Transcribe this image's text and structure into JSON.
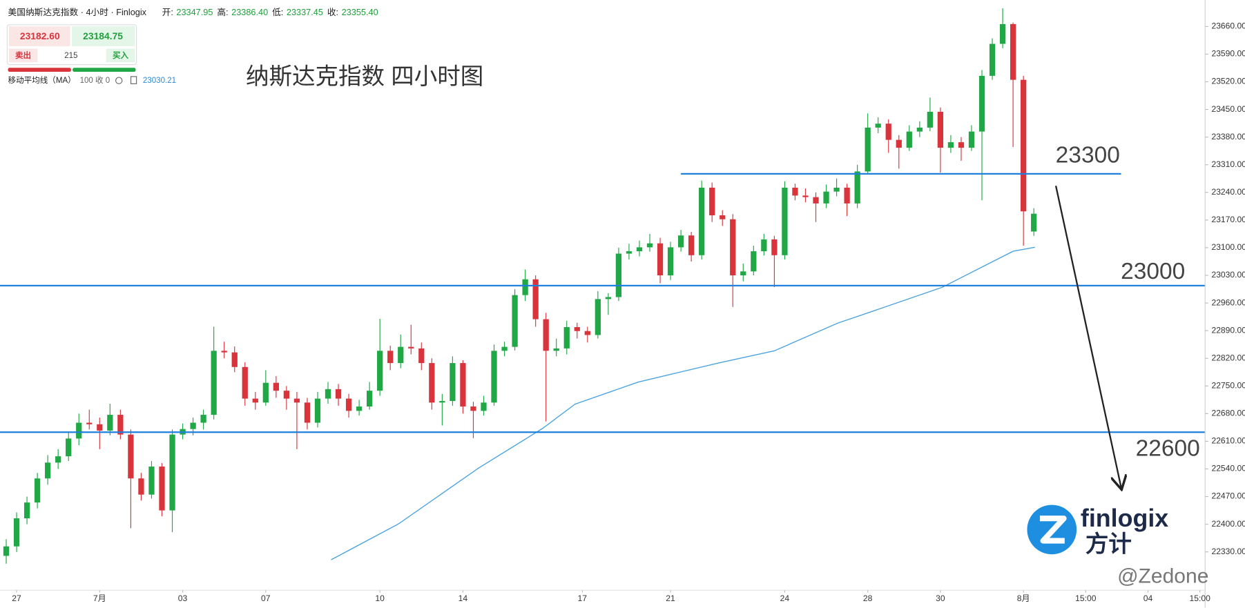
{
  "header": {
    "instrument": "美国纳斯达克指数 · 4小时 · Finlogix",
    "ohlc_labels": [
      "开:",
      "高:",
      "低:",
      "收:"
    ],
    "ohlc_values": [
      "23347.95",
      "23386.40",
      "23337.45",
      "23355.40"
    ]
  },
  "trade_panel": {
    "sell_price": "23182.60",
    "buy_price": "23184.75",
    "sell": "卖出",
    "spread": "215",
    "buy": "买入"
  },
  "indicator": {
    "name": "移动平均线（MA）",
    "params": "100 收 0",
    "value": "23030.21"
  },
  "logo": {
    "brand": "finlogix",
    "chinese": "方计"
  },
  "watermark": "@Zedone",
  "chart_data": {
    "type": "candlestick",
    "title": "纳斯达克指数 四小时图",
    "up_color": "#21a846",
    "down_color": "#d9343c",
    "ohlc": [
      [
        22320,
        22362,
        22300,
        22344
      ],
      [
        22344,
        22430,
        22330,
        22415
      ],
      [
        22415,
        22470,
        22400,
        22455
      ],
      [
        22455,
        22530,
        22440,
        22516
      ],
      [
        22516,
        22575,
        22500,
        22556
      ],
      [
        22556,
        22590,
        22540,
        22572
      ],
      [
        22572,
        22635,
        22560,
        22617
      ],
      [
        22617,
        22680,
        22600,
        22657
      ],
      [
        22657,
        22690,
        22640,
        22653
      ],
      [
        22653,
        22670,
        22590,
        22637
      ],
      [
        22637,
        22705,
        22625,
        22677
      ],
      [
        22677,
        22690,
        22615,
        22627
      ],
      [
        22627,
        22640,
        22390,
        22516
      ],
      [
        22516,
        22530,
        22460,
        22475
      ],
      [
        22475,
        22560,
        22465,
        22546
      ],
      [
        22546,
        22555,
        22420,
        22435
      ],
      [
        22435,
        22640,
        22380,
        22627
      ],
      [
        22627,
        22655,
        22615,
        22641
      ],
      [
        22641,
        22670,
        22625,
        22657
      ],
      [
        22657,
        22690,
        22640,
        22677
      ],
      [
        22677,
        22900,
        22665,
        22839
      ],
      [
        22839,
        22862,
        22820,
        22835
      ],
      [
        22835,
        22850,
        22785,
        22798
      ],
      [
        22798,
        22810,
        22700,
        22718
      ],
      [
        22718,
        22735,
        22690,
        22708
      ],
      [
        22708,
        22790,
        22700,
        22758
      ],
      [
        22758,
        22775,
        22720,
        22738
      ],
      [
        22738,
        22750,
        22690,
        22718
      ],
      [
        22718,
        22735,
        22590,
        22708
      ],
      [
        22708,
        22720,
        22640,
        22657
      ],
      [
        22657,
        22735,
        22645,
        22718
      ],
      [
        22718,
        22760,
        22705,
        22742
      ],
      [
        22742,
        22755,
        22700,
        22718
      ],
      [
        22718,
        22730,
        22670,
        22687
      ],
      [
        22687,
        22715,
        22675,
        22698
      ],
      [
        22698,
        22760,
        22690,
        22738
      ],
      [
        22738,
        22920,
        22725,
        22839
      ],
      [
        22839,
        22852,
        22790,
        22808
      ],
      [
        22808,
        22880,
        22795,
        22849
      ],
      [
        22849,
        22905,
        22830,
        22845
      ],
      [
        22845,
        22860,
        22790,
        22808
      ],
      [
        22808,
        22820,
        22690,
        22708
      ],
      [
        22708,
        22730,
        22650,
        22712
      ],
      [
        22712,
        22825,
        22700,
        22808
      ],
      [
        22808,
        22815,
        22680,
        22698
      ],
      [
        22698,
        22710,
        22618,
        22687
      ],
      [
        22687,
        22725,
        22675,
        22708
      ],
      [
        22708,
        22855,
        22700,
        22839
      ],
      [
        22839,
        22862,
        22825,
        22849
      ],
      [
        22849,
        22995,
        22840,
        22980
      ],
      [
        22980,
        23045,
        22965,
        23020
      ],
      [
        23020,
        23030,
        22900,
        22919
      ],
      [
        22919,
        22935,
        22660,
        22839
      ],
      [
        22839,
        22870,
        22825,
        22845
      ],
      [
        22845,
        22915,
        22830,
        22899
      ],
      [
        22899,
        22910,
        22870,
        22889
      ],
      [
        22889,
        22900,
        22860,
        22879
      ],
      [
        22879,
        22990,
        22870,
        22970
      ],
      [
        22970,
        22985,
        22930,
        22975
      ],
      [
        22975,
        23100,
        22965,
        23085
      ],
      [
        23085,
        23110,
        23070,
        23091
      ],
      [
        23091,
        23118,
        23078,
        23101
      ],
      [
        23101,
        23135,
        23090,
        23111
      ],
      [
        23111,
        23125,
        23010,
        23030
      ],
      [
        23030,
        23115,
        23018,
        23101
      ],
      [
        23101,
        23145,
        23090,
        23131
      ],
      [
        23131,
        23140,
        23065,
        23081
      ],
      [
        23081,
        23270,
        23070,
        23252
      ],
      [
        23252,
        23265,
        23165,
        23182
      ],
      [
        23182,
        23195,
        23155,
        23172
      ],
      [
        23172,
        23185,
        22950,
        23030
      ],
      [
        23030,
        23060,
        23015,
        23040
      ],
      [
        23040,
        23105,
        23030,
        23091
      ],
      [
        23091,
        23135,
        23080,
        23121
      ],
      [
        23121,
        23130,
        23000,
        23081
      ],
      [
        23081,
        23268,
        23070,
        23252
      ],
      [
        23252,
        23262,
        23220,
        23232
      ],
      [
        23232,
        23250,
        23215,
        23228
      ],
      [
        23228,
        23240,
        23165,
        23212
      ],
      [
        23212,
        23260,
        23200,
        23242
      ],
      [
        23242,
        23275,
        23230,
        23252
      ],
      [
        23252,
        23262,
        23180,
        23212
      ],
      [
        23212,
        23310,
        23200,
        23293
      ],
      [
        23293,
        23440,
        23285,
        23404
      ],
      [
        23404,
        23430,
        23390,
        23414
      ],
      [
        23414,
        23425,
        23340,
        23373
      ],
      [
        23373,
        23385,
        23300,
        23353
      ],
      [
        23353,
        23410,
        23345,
        23394
      ],
      [
        23394,
        23420,
        23380,
        23404
      ],
      [
        23404,
        23480,
        23395,
        23444
      ],
      [
        23444,
        23455,
        23290,
        23353
      ],
      [
        23353,
        23385,
        23340,
        23367
      ],
      [
        23367,
        23380,
        23320,
        23353
      ],
      [
        23353,
        23410,
        23345,
        23394
      ],
      [
        23394,
        23550,
        23220,
        23535
      ],
      [
        23535,
        23630,
        23525,
        23616
      ],
      [
        23616,
        23706,
        23605,
        23666
      ],
      [
        23666,
        23670,
        23355,
        23525
      ],
      [
        23525,
        23535,
        23105,
        23192
      ],
      [
        23141,
        23200,
        23130,
        23186
      ]
    ],
    "ma": {
      "color": "#4aa3e0",
      "x": [
        31.3,
        37.8,
        45.5,
        51.7,
        54.8,
        60.9,
        68.6,
        74,
        80.1,
        84,
        90.2,
        94,
        97,
        99.1
      ],
      "values": [
        22310,
        22401,
        22542,
        22643,
        22704,
        22760,
        22808,
        22839,
        22909,
        22944,
        23000,
        23051,
        23091,
        23101
      ]
    },
    "levels": [
      {
        "label": "23300",
        "value": 23287,
        "x_from": 65,
        "x_to": 107.4
      },
      {
        "label": "23000",
        "value": 23004,
        "x_from": -0.6,
        "x_to": 115.5
      },
      {
        "label": "22600",
        "value": 22633,
        "x_from": -0.6,
        "x_to": 115.5
      }
    ],
    "level_color": "#1f7fdc",
    "xlim": [
      -0.6,
      115.5
    ],
    "xticks": [
      {
        "value": 1,
        "label": "27"
      },
      {
        "value": 9,
        "label": "7月"
      },
      {
        "value": 17,
        "label": "03"
      },
      {
        "value": 25,
        "label": "07"
      },
      {
        "value": 36,
        "label": "10"
      },
      {
        "value": 44,
        "label": "14"
      },
      {
        "value": 55.5,
        "label": "17"
      },
      {
        "value": 64,
        "label": "21"
      },
      {
        "value": 75,
        "label": "24"
      },
      {
        "value": 83,
        "label": "28"
      },
      {
        "value": 90,
        "label": "30"
      },
      {
        "value": 98,
        "label": "8月"
      },
      {
        "value": 104,
        "label": "15:00"
      },
      {
        "value": 110,
        "label": "04"
      },
      {
        "value": 115,
        "label": "15:00"
      }
    ],
    "ylim": [
      22233,
      23727
    ],
    "yticks": [
      {
        "value": 22330,
        "label": "22330.00"
      },
      {
        "value": 22400,
        "label": "22400.00"
      },
      {
        "value": 22470,
        "label": "22470.00"
      },
      {
        "value": 22540,
        "label": "22540.00"
      },
      {
        "value": 22610,
        "label": "22610.00"
      },
      {
        "value": 22680,
        "label": "22680.00"
      },
      {
        "value": 22750,
        "label": "22750.00"
      },
      {
        "value": 22820,
        "label": "22820.00"
      },
      {
        "value": 22890,
        "label": "22890.00"
      },
      {
        "value": 22960,
        "label": "22960.00"
      },
      {
        "value": 23030,
        "label": "23030.00"
      },
      {
        "value": 23100,
        "label": "23100.00"
      },
      {
        "value": 23170,
        "label": "23170.00"
      },
      {
        "value": 23240,
        "label": "23240.00"
      },
      {
        "value": 23310,
        "label": "23310.00"
      },
      {
        "value": 23380,
        "label": "23380.00"
      },
      {
        "value": 23450,
        "label": "23450.00"
      },
      {
        "value": 23520,
        "label": "23520.00"
      },
      {
        "value": 23590,
        "label": "23590.00"
      },
      {
        "value": 23660,
        "label": "23660.00"
      }
    ],
    "grid": false
  }
}
